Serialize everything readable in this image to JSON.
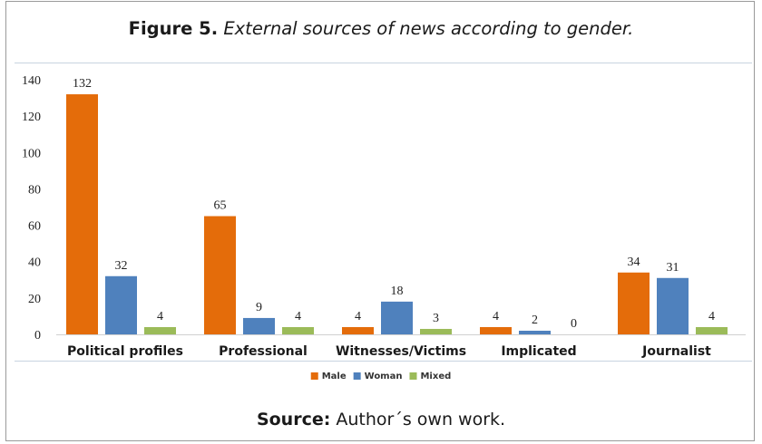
{
  "figure": {
    "title_lead": "Figure 5.",
    "title_rest": "External sources of news according to gender.",
    "source_lead": "Source:",
    "source_rest": "Author´s own work."
  },
  "chart_data": {
    "type": "bar",
    "title": "Figure 5. External sources of news according to gender.",
    "categories": [
      "Political profiles",
      "Professional",
      "Witnesses/Victims",
      "Implicated",
      "Journalist"
    ],
    "series": [
      {
        "name": "Male",
        "values": [
          132,
          65,
          4,
          4,
          34
        ],
        "color": "#e46c0a"
      },
      {
        "name": "Woman",
        "values": [
          32,
          9,
          18,
          2,
          31
        ],
        "color": "#4f81bd"
      },
      {
        "name": "Mixed",
        "values": [
          4,
          4,
          3,
          0,
          4
        ],
        "color": "#9bbb59"
      }
    ],
    "yticks": [
      0,
      20,
      40,
      60,
      80,
      100,
      120,
      140
    ],
    "ylim": [
      0,
      140
    ],
    "xlabel": "",
    "ylabel": "",
    "grid": false,
    "legend": "bottom-center",
    "data_labels": true
  }
}
